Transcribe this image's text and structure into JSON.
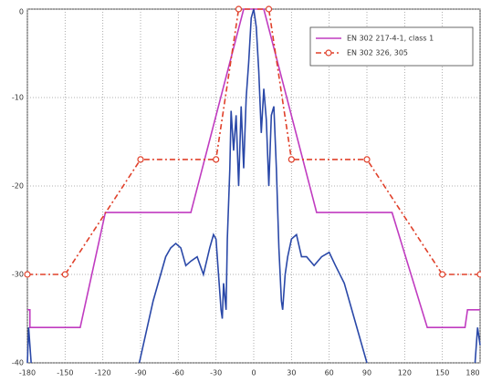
{
  "chart_data": {
    "type": "line",
    "xlim": [
      -180,
      180
    ],
    "ylim": [
      -40,
      0
    ],
    "xticks": [
      -180,
      -150,
      -120,
      -90,
      -60,
      -30,
      0,
      30,
      60,
      90,
      120,
      150,
      180
    ],
    "yticks": [
      0,
      -10,
      -20,
      -30,
      -40
    ],
    "grid": true,
    "legend": "upper right",
    "series": [
      {
        "name": "EN 302 217-4-1, class 1",
        "color": "#c03cc0",
        "dash": "solid",
        "marker": "none",
        "x": [
          -180,
          -178,
          -178,
          -138,
          -118,
          -50,
          -8,
          8,
          50,
          110,
          138,
          168,
          170,
          180
        ],
        "values": [
          -34,
          -34,
          -36,
          -36,
          -23,
          -23,
          0,
          0,
          -23,
          -23,
          -36,
          -36,
          -34,
          -34
        ]
      },
      {
        "name": "EN 302 326, 305",
        "color": "#e0402a",
        "dash": "dashed",
        "marker": "circle",
        "x": [
          -180,
          -150,
          -90,
          -30,
          -12,
          12,
          30,
          90,
          150,
          180
        ],
        "values": [
          -30,
          -30,
          -17,
          -17,
          0,
          0,
          -17,
          -17,
          -30,
          -30
        ]
      },
      {
        "color": "#2a48a8",
        "dash": "solid",
        "marker": "none",
        "x": [
          -180,
          -179,
          -177,
          -120,
          -91,
          -80,
          -70,
          -66,
          -62,
          -58,
          -54,
          -50,
          -45,
          -40,
          -35,
          -32,
          -30,
          -28,
          -26,
          -25,
          -24,
          -22,
          -21,
          -19,
          -18,
          -16,
          -14,
          -12,
          -10,
          -8,
          -6,
          -4,
          -2,
          0,
          2,
          4,
          6,
          8,
          10,
          12,
          14,
          16,
          18,
          20,
          22,
          23,
          25,
          27,
          30,
          34,
          38,
          42,
          48,
          54,
          60,
          65,
          72,
          80,
          90,
          130,
          176,
          178,
          180
        ],
        "values": [
          -40,
          -36,
          -40,
          null,
          -40,
          -33,
          -28,
          -27,
          -26.5,
          -27,
          -29,
          -28.5,
          -28,
          -30,
          -27,
          -25.5,
          -26,
          -30,
          -34,
          -35,
          -31,
          -34,
          -26,
          -18,
          -11.5,
          -16,
          -12,
          -20,
          -11,
          -18,
          -10,
          -6,
          -1,
          0,
          -2,
          -7,
          -14,
          -9,
          -12.5,
          -20,
          -12,
          -11,
          -18,
          -27,
          -33,
          -34,
          -30,
          -28,
          -26,
          -25.5,
          -28,
          -28,
          -29,
          -28,
          -27.5,
          -29,
          -31,
          -35,
          -40,
          null,
          -40,
          -36,
          -38
        ]
      }
    ]
  }
}
